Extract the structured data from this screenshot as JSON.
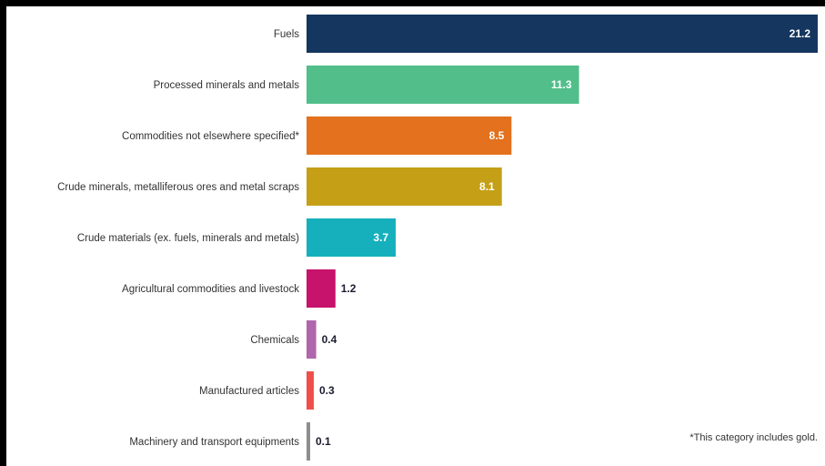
{
  "chart_data": {
    "type": "bar",
    "orientation": "horizontal",
    "categories": [
      "Fuels",
      "Processed minerals and metals",
      "Commodities not elsewhere specified*",
      "Crude minerals, metalliferous ores and metal scraps",
      "Crude materials (ex. fuels, minerals and metals)",
      "Agricultural commodities and livestock",
      "Chemicals",
      "Manufactured articles",
      "Machinery and transport equipments"
    ],
    "values": [
      21.2,
      11.3,
      8.5,
      8.1,
      3.7,
      1.2,
      0.4,
      0.3,
      0.1
    ],
    "value_labels": [
      "21.2",
      "11.3",
      "8.5",
      "8.1",
      "3.7",
      "1.2",
      "0.4",
      "0.3",
      "0.1"
    ],
    "colors": [
      "#15365e",
      "#52be8a",
      "#e3711d",
      "#c5a017",
      "#16b0bd",
      "#c7136b",
      "#b066ac",
      "#ef4f4a",
      "#8d8d8d"
    ],
    "xlim": [
      0,
      21.2
    ],
    "grid": false,
    "legend": "none"
  },
  "footnote": "*This category includes gold."
}
